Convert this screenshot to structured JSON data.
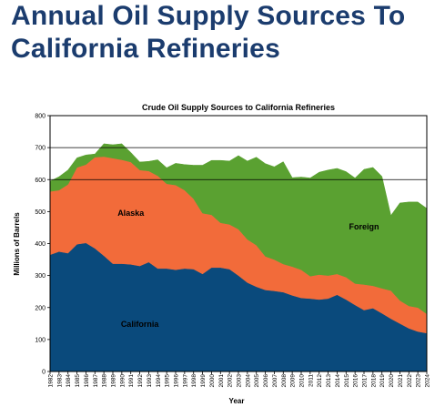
{
  "page": {
    "title_line1": "Annual Oil Supply Sources To",
    "title_line2": "California Refineries"
  },
  "chart_data": {
    "type": "area",
    "stacked": true,
    "title": "Crude Oil Supply Sources to California Refineries",
    "xlabel": "Year",
    "ylabel": "Millions of Barrels",
    "ylim": [
      0,
      800
    ],
    "yticks": [
      0,
      100,
      200,
      300,
      400,
      500,
      600,
      700,
      800
    ],
    "grid": "horizontal gridlines at 600 and 700",
    "legend": "none (series labeled inside areas)",
    "categories": [
      "1982",
      "1983",
      "1984",
      "1985",
      "1986",
      "1987",
      "1988",
      "1989",
      "1990",
      "1991",
      "1992",
      "1993",
      "1994",
      "1995",
      "1996",
      "1997",
      "1998",
      "1999",
      "2000",
      "2001",
      "2002",
      "2003",
      "2004",
      "2005",
      "2006",
      "2007",
      "2008",
      "2009",
      "2010",
      "2011",
      "2012",
      "2013",
      "2014",
      "2015",
      "2016",
      "2017",
      "2018",
      "2019",
      "2020",
      "2021",
      "2022",
      "2023",
      "2024"
    ],
    "series": [
      {
        "name": "California",
        "color": "#0a4a7c",
        "values": [
          365,
          375,
          370,
          398,
          402,
          385,
          362,
          337,
          337,
          335,
          330,
          342,
          322,
          322,
          318,
          322,
          320,
          305,
          325,
          325,
          320,
          300,
          278,
          265,
          255,
          252,
          248,
          238,
          230,
          228,
          225,
          228,
          240,
          225,
          208,
          192,
          198,
          182,
          165,
          150,
          135,
          125,
          120
        ]
      },
      {
        "name": "Alaska",
        "color": "#f26b3a",
        "values": [
          198,
          192,
          215,
          240,
          245,
          285,
          310,
          330,
          325,
          320,
          300,
          285,
          290,
          265,
          265,
          245,
          220,
          190,
          165,
          140,
          140,
          145,
          135,
          130,
          105,
          98,
          88,
          90,
          88,
          70,
          78,
          72,
          65,
          70,
          67,
          80,
          70,
          78,
          88,
          72,
          70,
          75,
          60
        ]
      },
      {
        "name": "Foreign",
        "color": "#5aa131",
        "values": [
          32,
          42,
          45,
          30,
          30,
          10,
          40,
          42,
          50,
          30,
          25,
          30,
          50,
          50,
          68,
          80,
          105,
          150,
          170,
          195,
          198,
          230,
          245,
          275,
          290,
          290,
          320,
          278,
          290,
          307,
          320,
          330,
          330,
          330,
          330,
          360,
          370,
          350,
          235,
          305,
          325,
          330,
          330
        ]
      }
    ]
  }
}
